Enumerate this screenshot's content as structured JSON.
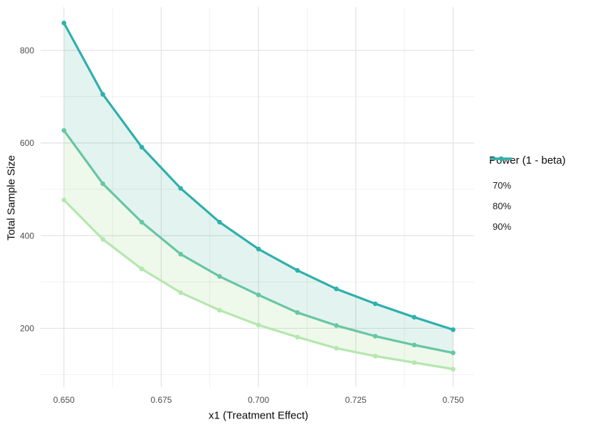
{
  "chart_data": {
    "type": "line",
    "title": "",
    "xlabel": "x1 (Treatment Effect)",
    "ylabel": "Total Sample Size",
    "x": [
      0.65,
      0.66,
      0.67,
      0.68,
      0.69,
      0.7,
      0.71,
      0.72,
      0.73,
      0.74,
      0.75
    ],
    "series": [
      {
        "name": "70%",
        "color": "#b5e7ae",
        "values": [
          477,
          392,
          328,
          277,
          239,
          207,
          181,
          157,
          140,
          126,
          112
        ]
      },
      {
        "name": "80%",
        "color": "#68c6a3",
        "values": [
          627,
          512,
          429,
          360,
          312,
          272,
          234,
          206,
          183,
          164,
          147
        ]
      },
      {
        "name": "90%",
        "color": "#2fb0ac",
        "values": [
          859,
          705,
          591,
          502,
          429,
          371,
          325,
          285,
          253,
          224,
          197
        ]
      }
    ],
    "ribbons": [
      {
        "upper": "90%",
        "lower": "80%",
        "fill": "#16a078",
        "opacity": 0.12
      },
      {
        "upper": "80%",
        "lower": "70%",
        "fill": "#71c558",
        "opacity": 0.12
      }
    ],
    "x_ticks": [
      "0.650",
      "0.675",
      "0.700",
      "0.725",
      "0.750"
    ],
    "x_tick_values": [
      0.65,
      0.675,
      0.7,
      0.725,
      0.75
    ],
    "x_minor": [
      0.6625,
      0.6875,
      0.7125,
      0.7375
    ],
    "y_ticks": [
      "200",
      "400",
      "600",
      "800"
    ],
    "y_tick_values": [
      200,
      400,
      600,
      800
    ],
    "y_minor": [
      100,
      300,
      500,
      700
    ],
    "x_domain": [
      0.644,
      0.7554
    ],
    "y_domain": [
      73,
      893.2
    ],
    "grid": true,
    "legend_position": "right",
    "marker": "point"
  },
  "legend": {
    "title": "Power (1 - beta)",
    "items": [
      {
        "label": "70%"
      },
      {
        "label": "80%"
      },
      {
        "label": "90%"
      }
    ]
  },
  "colors": {
    "background": "#ffffff",
    "grid_major": "#e2e2e2",
    "grid_minor": "#f0f0f0",
    "tick_text": "#4d4d4d",
    "axis_title_text": "#0a0a0a"
  }
}
